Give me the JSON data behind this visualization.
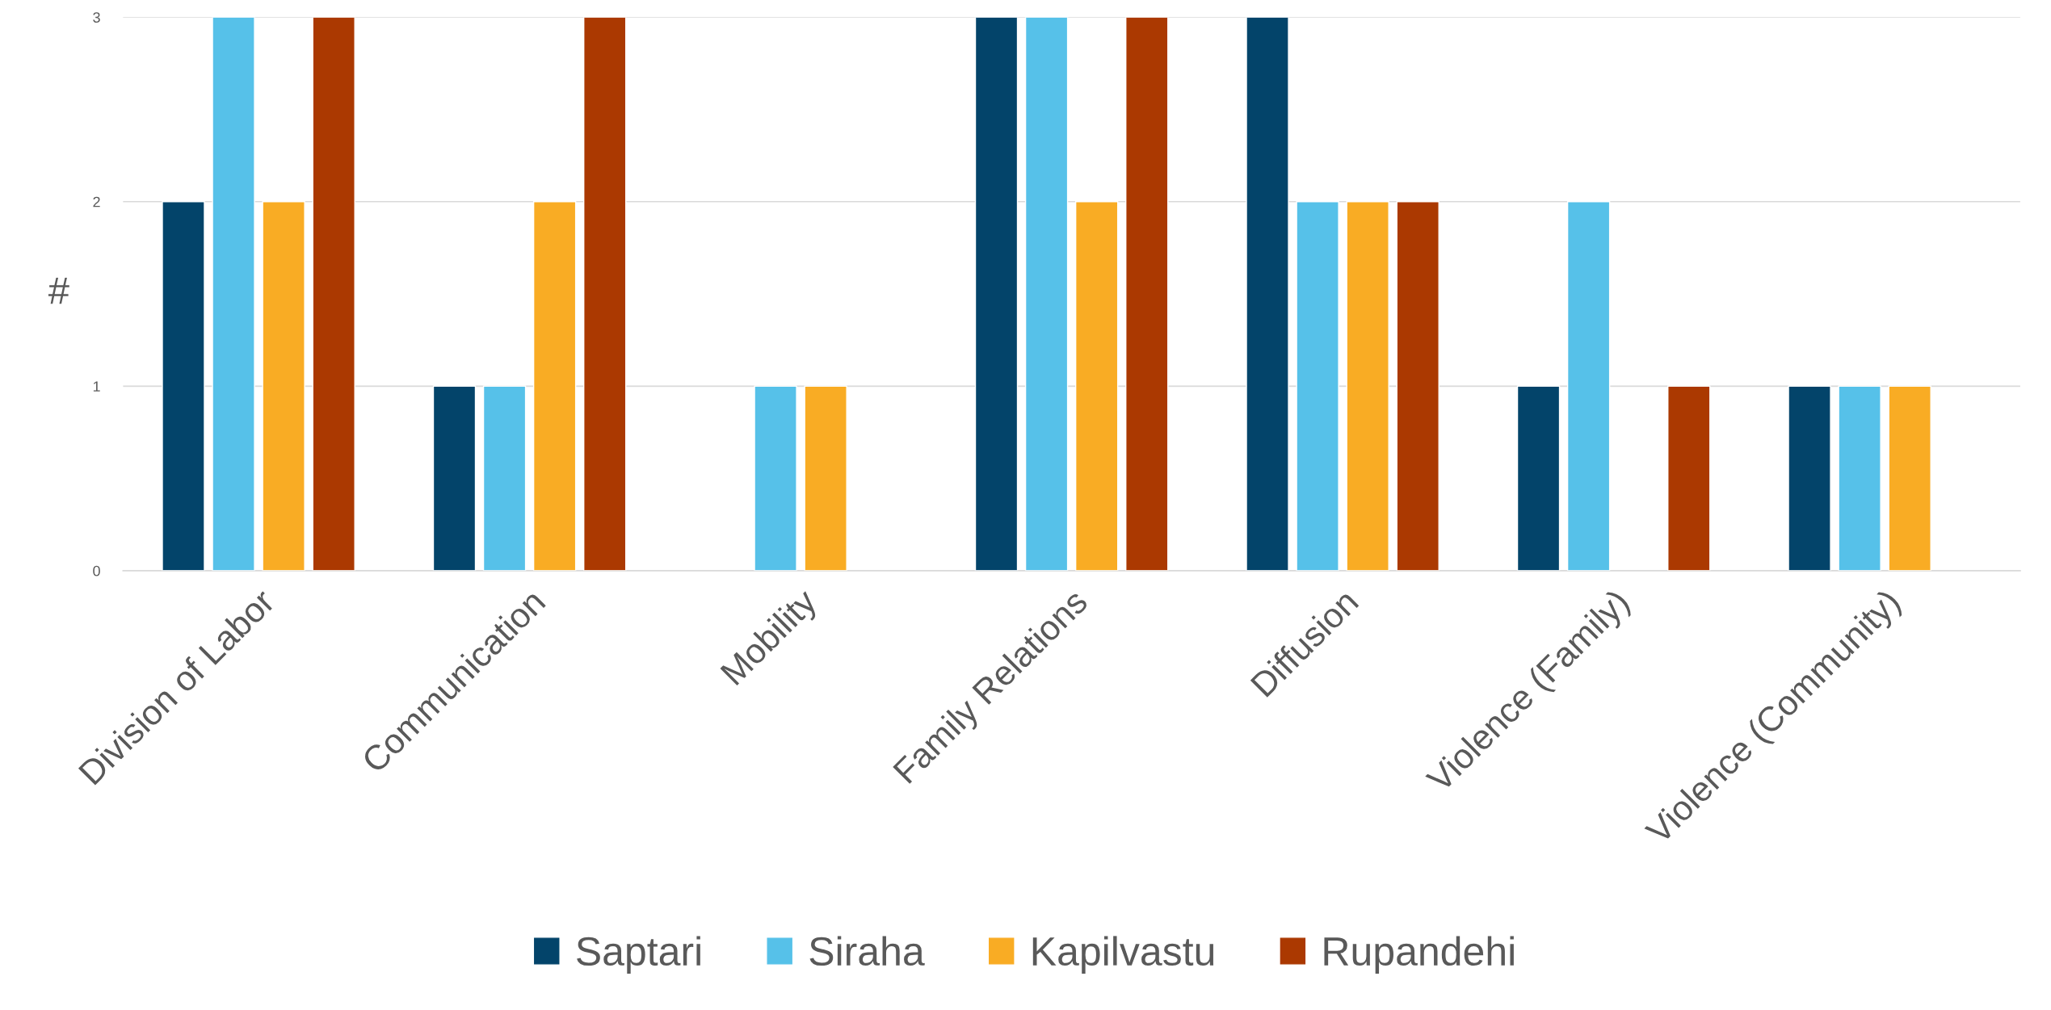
{
  "chart_data": {
    "type": "bar",
    "ylabel": "#",
    "categories": [
      "Division of Labor",
      "Communication",
      "Mobility",
      "Family Relations",
      "Diffusion",
      "Violence (Family)",
      "Violence (Community)"
    ],
    "series": [
      {
        "name": "Saptari",
        "color": "#03446a",
        "values": [
          2,
          1,
          null,
          3,
          3,
          1,
          1
        ]
      },
      {
        "name": "Siraha",
        "color": "#56c1e9",
        "values": [
          3,
          1,
          1,
          3,
          2,
          2,
          1
        ]
      },
      {
        "name": "Kapilvastu",
        "color": "#f9ac24",
        "values": [
          2,
          2,
          1,
          2,
          2,
          null,
          1
        ]
      },
      {
        "name": "Rupandehi",
        "color": "#ab3901",
        "values": [
          3,
          3,
          null,
          3,
          2,
          1,
          null
        ]
      }
    ],
    "ylim": [
      0,
      3
    ],
    "yticks": [
      0,
      1,
      2,
      3
    ],
    "grid": "y",
    "legend": "bottom"
  }
}
